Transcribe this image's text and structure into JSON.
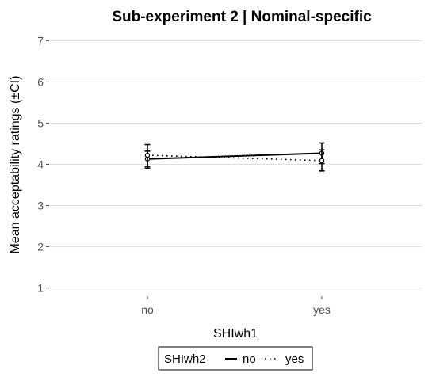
{
  "chart_data": {
    "type": "line",
    "title": "Sub-experiment 2 | Nominal-specific",
    "xlabel": "SHIwh1",
    "ylabel": "Mean acceptability ratings (±CI)",
    "categories": [
      "no",
      "yes"
    ],
    "ylim": [
      0.8,
      7.2
    ],
    "yticks": [
      1,
      2,
      3,
      4,
      5,
      6,
      7
    ],
    "grid": true,
    "legend": {
      "title": "SHIwh2",
      "position": "bottom"
    },
    "series": [
      {
        "name": "no",
        "linestyle": "solid",
        "values": [
          4.13,
          4.27
        ],
        "ci_low": [
          3.95,
          4.02
        ],
        "ci_high": [
          4.32,
          4.52
        ],
        "color": "#000000"
      },
      {
        "name": "yes",
        "linestyle": "dotted",
        "values": [
          4.22,
          4.09
        ],
        "ci_low": [
          3.91,
          3.84
        ],
        "ci_high": [
          4.48,
          4.35
        ],
        "color": "#000000"
      }
    ]
  }
}
